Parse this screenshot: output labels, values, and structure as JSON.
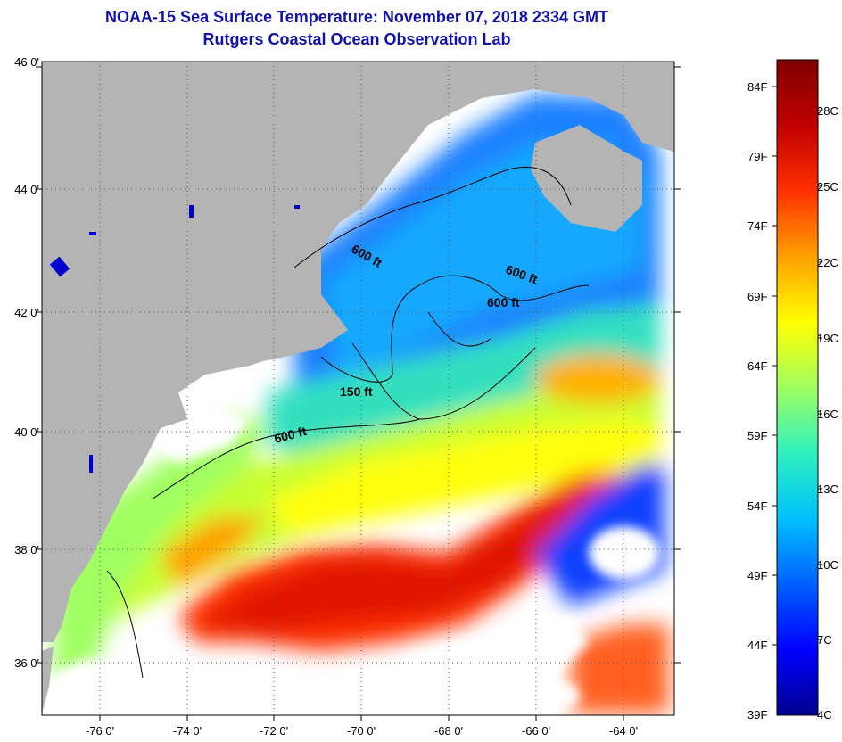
{
  "header": {
    "title_line1": "NOAA-15 Sea Surface Temperature:  November 07, 2018 2334 GMT",
    "title_line2": "Rutgers Coastal Ocean Observation Lab"
  },
  "axes": {
    "latitude_ticks": [
      "46 0'",
      "44 0'",
      "42 0'",
      "40 0'",
      "38 0'",
      "36 0'"
    ],
    "longitude_ticks": [
      "-76 0'",
      "-74 0'",
      "-72 0'",
      "-70 0'",
      "-68 0'",
      "-66 0'",
      "-64 0'"
    ]
  },
  "contour_labels": [
    "600 ft",
    "600 ft",
    "600 ft",
    "150 ft",
    "600 ft"
  ],
  "colorbar": {
    "fahrenheit_labels": [
      "84F",
      "79F",
      "74F",
      "69F",
      "64F",
      "59F",
      "54F",
      "49F",
      "44F",
      "39F"
    ],
    "celsius_labels": [
      "28C",
      "25C",
      "22C",
      "19C",
      "16C",
      "13C",
      "10C",
      "7C",
      "4C"
    ],
    "gradient_colors": [
      "#000090",
      "#0000ff",
      "#0060ff",
      "#00c0ff",
      "#30f0c0",
      "#a0ff60",
      "#ffff00",
      "#ffa000",
      "#ff3000",
      "#c00000",
      "#800000"
    ]
  },
  "colors": {
    "land": "#b4b4b4",
    "cloud": "#ffffff",
    "title": "#1010b0",
    "cold_water": "#1878ff",
    "warm_water": "#ff2a00"
  }
}
